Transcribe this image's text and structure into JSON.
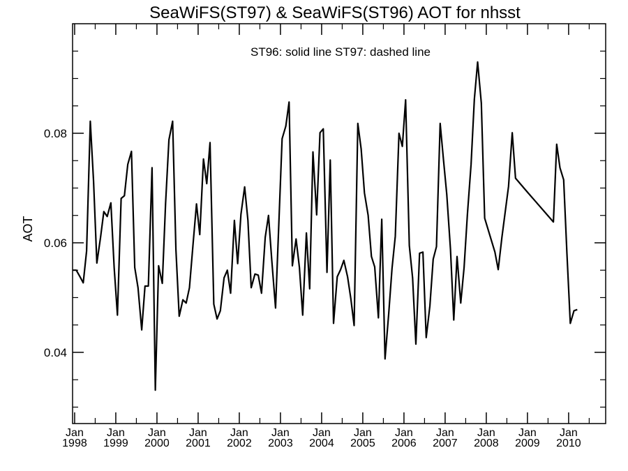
{
  "chart_data": {
    "type": "line",
    "title": "SeaWiFS(ST97) & SeaWiFS(ST96)  AOT for nhsst",
    "annotation": "ST96: solid line   ST97: dashed line",
    "xlabel": "",
    "ylabel": "AOT",
    "xlim": [
      1997.95,
      2010.9
    ],
    "ylim": [
      0.027,
      0.1
    ],
    "y_ticks": [
      "0.04",
      "0.06",
      "0.08"
    ],
    "y_tick_values": [
      0.04,
      0.06,
      0.08
    ],
    "x_ticks": [
      {
        "month": "Jan",
        "year": "1998",
        "value": 1998.0
      },
      {
        "month": "Jan",
        "year": "1999",
        "value": 1999.0
      },
      {
        "month": "Jan",
        "year": "2000",
        "value": 2000.0
      },
      {
        "month": "Jan",
        "year": "2001",
        "value": 2001.0
      },
      {
        "month": "Jan",
        "year": "2002",
        "value": 2002.0
      },
      {
        "month": "Jan",
        "year": "2003",
        "value": 2003.0
      },
      {
        "month": "Jan",
        "year": "2004",
        "value": 2004.0
      },
      {
        "month": "Jan",
        "year": "2005",
        "value": 2005.0
      },
      {
        "month": "Jan",
        "year": "2006",
        "value": 2006.0
      },
      {
        "month": "Jan",
        "year": "2007",
        "value": 2007.0
      },
      {
        "month": "Jan",
        "year": "2008",
        "value": 2008.0
      },
      {
        "month": "Jan",
        "year": "2009",
        "value": 2009.0
      },
      {
        "month": "Jan",
        "year": "2010",
        "value": 2010.0
      }
    ],
    "grid": false,
    "series": [
      {
        "line_style": "solid",
        "color": "#000000",
        "points": [
          [
            1997.96,
            0.055
          ],
          [
            1998.04,
            0.055
          ],
          [
            1998.13,
            0.0538
          ],
          [
            1998.21,
            0.0527
          ],
          [
            1998.29,
            0.0585
          ],
          [
            1998.38,
            0.0822
          ],
          [
            1998.46,
            0.0712
          ],
          [
            1998.54,
            0.0563
          ],
          [
            1998.63,
            0.061
          ],
          [
            1998.71,
            0.0657
          ],
          [
            1998.79,
            0.0648
          ],
          [
            1998.88,
            0.0673
          ],
          [
            1998.96,
            0.0555
          ],
          [
            1999.04,
            0.0468
          ],
          [
            1999.13,
            0.0681
          ],
          [
            1999.21,
            0.0686
          ],
          [
            1999.29,
            0.0743
          ],
          [
            1999.38,
            0.0767
          ],
          [
            1999.46,
            0.0555
          ],
          [
            1999.54,
            0.0518
          ],
          [
            1999.63,
            0.0441
          ],
          [
            1999.71,
            0.0521
          ],
          [
            1999.79,
            0.0521
          ],
          [
            1999.88,
            0.0737
          ],
          [
            1999.96,
            0.0331
          ],
          [
            2000.04,
            0.0558
          ],
          [
            2000.13,
            0.0526
          ],
          [
            2000.21,
            0.0672
          ],
          [
            2000.29,
            0.0788
          ],
          [
            2000.38,
            0.0822
          ],
          [
            2000.46,
            0.0588
          ],
          [
            2000.54,
            0.0466
          ],
          [
            2000.63,
            0.0496
          ],
          [
            2000.71,
            0.049
          ],
          [
            2000.79,
            0.0518
          ],
          [
            2000.88,
            0.0601
          ],
          [
            2000.96,
            0.0671
          ],
          [
            2001.04,
            0.0615
          ],
          [
            2001.13,
            0.0753
          ],
          [
            2001.21,
            0.0708
          ],
          [
            2001.29,
            0.0783
          ],
          [
            2001.38,
            0.0488
          ],
          [
            2001.46,
            0.0461
          ],
          [
            2001.54,
            0.0476
          ],
          [
            2001.63,
            0.0536
          ],
          [
            2001.71,
            0.055
          ],
          [
            2001.79,
            0.0508
          ],
          [
            2001.88,
            0.0641
          ],
          [
            2001.96,
            0.0562
          ],
          [
            2002.04,
            0.0652
          ],
          [
            2002.13,
            0.0702
          ],
          [
            2002.21,
            0.0641
          ],
          [
            2002.29,
            0.0518
          ],
          [
            2002.38,
            0.0543
          ],
          [
            2002.46,
            0.0541
          ],
          [
            2002.54,
            0.0508
          ],
          [
            2002.63,
            0.061
          ],
          [
            2002.71,
            0.065
          ],
          [
            2002.79,
            0.0568
          ],
          [
            2002.88,
            0.0481
          ],
          [
            2002.96,
            0.0635
          ],
          [
            2003.04,
            0.079
          ],
          [
            2003.13,
            0.0813
          ],
          [
            2003.21,
            0.0857
          ],
          [
            2003.29,
            0.0558
          ],
          [
            2003.38,
            0.0607
          ],
          [
            2003.46,
            0.0555
          ],
          [
            2003.54,
            0.0468
          ],
          [
            2003.63,
            0.0618
          ],
          [
            2003.71,
            0.0516
          ],
          [
            2003.79,
            0.0766
          ],
          [
            2003.88,
            0.0651
          ],
          [
            2003.96,
            0.0801
          ],
          [
            2004.04,
            0.0808
          ],
          [
            2004.13,
            0.0546
          ],
          [
            2004.21,
            0.0751
          ],
          [
            2004.29,
            0.0453
          ],
          [
            2004.38,
            0.0538
          ],
          [
            2004.46,
            0.0551
          ],
          [
            2004.54,
            0.0568
          ],
          [
            2004.63,
            0.0538
          ],
          [
            2004.71,
            0.0498
          ],
          [
            2004.79,
            0.0449
          ],
          [
            2004.88,
            0.0818
          ],
          [
            2004.96,
            0.0771
          ],
          [
            2005.04,
            0.0691
          ],
          [
            2005.13,
            0.065
          ],
          [
            2005.21,
            0.0575
          ],
          [
            2005.29,
            0.0556
          ],
          [
            2005.38,
            0.0463
          ],
          [
            2005.46,
            0.0643
          ],
          [
            2005.54,
            0.0388
          ],
          [
            2005.63,
            0.0471
          ],
          [
            2005.71,
            0.0553
          ],
          [
            2005.79,
            0.0612
          ],
          [
            2005.88,
            0.08
          ],
          [
            2005.96,
            0.0776
          ],
          [
            2006.04,
            0.0861
          ],
          [
            2006.13,
            0.0595
          ],
          [
            2006.21,
            0.0536
          ],
          [
            2006.29,
            0.0415
          ],
          [
            2006.38,
            0.0581
          ],
          [
            2006.46,
            0.0583
          ],
          [
            2006.54,
            0.0427
          ],
          [
            2006.63,
            0.0485
          ],
          [
            2006.71,
            0.057
          ],
          [
            2006.79,
            0.0593
          ],
          [
            2006.88,
            0.0818
          ],
          [
            2006.96,
            0.0751
          ],
          [
            2007.04,
            0.0688
          ],
          [
            2007.13,
            0.0588
          ],
          [
            2007.21,
            0.0459
          ],
          [
            2007.29,
            0.0575
          ],
          [
            2007.38,
            0.049
          ],
          [
            2007.46,
            0.0555
          ],
          [
            2007.54,
            0.0651
          ],
          [
            2007.63,
            0.0743
          ],
          [
            2007.71,
            0.0862
          ],
          [
            2007.79,
            0.093
          ],
          [
            2007.88,
            0.0855
          ],
          [
            2007.96,
            0.0645
          ],
          [
            2008.21,
            0.0583
          ],
          [
            2008.29,
            0.0551
          ],
          [
            2008.38,
            0.061
          ],
          [
            2008.54,
            0.0703
          ],
          [
            2008.63,
            0.0801
          ],
          [
            2008.71,
            0.0718
          ],
          [
            2008.96,
            0.0696
          ],
          [
            2009.63,
            0.0638
          ],
          [
            2009.71,
            0.078
          ],
          [
            2009.79,
            0.0737
          ],
          [
            2009.88,
            0.0715
          ],
          [
            2009.96,
            0.058
          ],
          [
            2010.04,
            0.0453
          ],
          [
            2010.13,
            0.0476
          ],
          [
            2010.21,
            0.0478
          ]
        ]
      }
    ]
  }
}
